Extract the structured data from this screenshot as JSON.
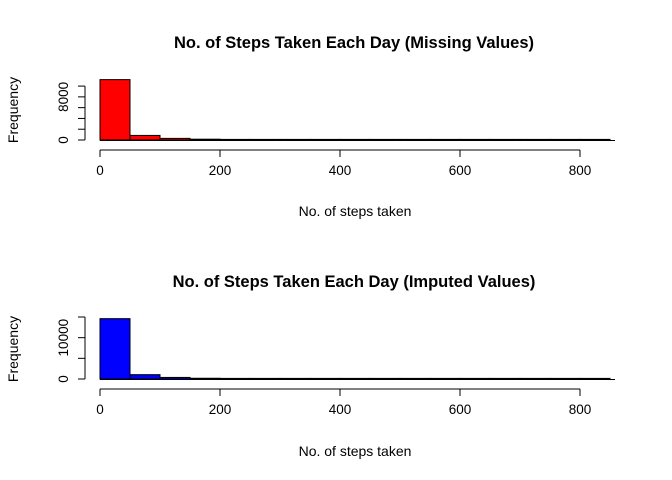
{
  "chart_data": [
    {
      "type": "bar",
      "title": "No. of Steps Taken Each Day (Missing Values)",
      "xlabel": "No. of steps taken",
      "ylabel": "Frequency",
      "x_ticks": [
        0,
        200,
        400,
        600,
        800
      ],
      "y_ticks": [
        0,
        8000
      ],
      "y_minor_ticks": [
        2000,
        4000,
        6000,
        10000
      ],
      "xlim": [
        0,
        850
      ],
      "ylim": [
        0,
        11500
      ],
      "bin_width": 50,
      "bins": [
        {
          "x0": 0,
          "x1": 50,
          "count": 11200
        },
        {
          "x0": 50,
          "x1": 100,
          "count": 850
        },
        {
          "x0": 100,
          "x1": 150,
          "count": 300
        },
        {
          "x0": 150,
          "x1": 200,
          "count": 150
        },
        {
          "x0": 200,
          "x1": 250,
          "count": 40
        },
        {
          "x0": 250,
          "x1": 300,
          "count": 20
        },
        {
          "x0": 300,
          "x1": 350,
          "count": 10
        },
        {
          "x0": 350,
          "x1": 400,
          "count": 6
        },
        {
          "x0": 400,
          "x1": 450,
          "count": 4
        },
        {
          "x0": 450,
          "x1": 500,
          "count": 3
        },
        {
          "x0": 500,
          "x1": 550,
          "count": 2
        },
        {
          "x0": 550,
          "x1": 600,
          "count": 2
        },
        {
          "x0": 600,
          "x1": 650,
          "count": 1
        },
        {
          "x0": 650,
          "x1": 700,
          "count": 1
        },
        {
          "x0": 700,
          "x1": 750,
          "count": 1
        },
        {
          "x0": 750,
          "x1": 800,
          "count": 1
        },
        {
          "x0": 800,
          "x1": 850,
          "count": 1
        }
      ],
      "fill": "#ff0000",
      "grid": false
    },
    {
      "type": "bar",
      "title": "No. of Steps Taken Each Day (Imputed Values)",
      "xlabel": "No. of steps taken",
      "ylabel": "Frequency",
      "x_ticks": [
        0,
        200,
        400,
        600,
        800
      ],
      "y_ticks": [
        0,
        10000
      ],
      "y_minor_ticks": [
        5000,
        15000
      ],
      "xlim": [
        0,
        850
      ],
      "ylim": [
        0,
        15000
      ],
      "bin_width": 50,
      "bins": [
        {
          "x0": 0,
          "x1": 50,
          "count": 14600
        },
        {
          "x0": 50,
          "x1": 100,
          "count": 1050
        },
        {
          "x0": 100,
          "x1": 150,
          "count": 380
        },
        {
          "x0": 150,
          "x1": 200,
          "count": 180
        },
        {
          "x0": 200,
          "x1": 250,
          "count": 45
        },
        {
          "x0": 250,
          "x1": 300,
          "count": 25
        },
        {
          "x0": 300,
          "x1": 350,
          "count": 12
        },
        {
          "x0": 350,
          "x1": 400,
          "count": 7
        },
        {
          "x0": 400,
          "x1": 450,
          "count": 5
        },
        {
          "x0": 450,
          "x1": 500,
          "count": 3
        },
        {
          "x0": 500,
          "x1": 550,
          "count": 2
        },
        {
          "x0": 550,
          "x1": 600,
          "count": 2
        },
        {
          "x0": 600,
          "x1": 650,
          "count": 1
        },
        {
          "x0": 650,
          "x1": 700,
          "count": 1
        },
        {
          "x0": 700,
          "x1": 750,
          "count": 1
        },
        {
          "x0": 750,
          "x1": 800,
          "count": 1
        },
        {
          "x0": 800,
          "x1": 850,
          "count": 1
        }
      ],
      "fill": "#0000ff",
      "grid": false
    }
  ]
}
